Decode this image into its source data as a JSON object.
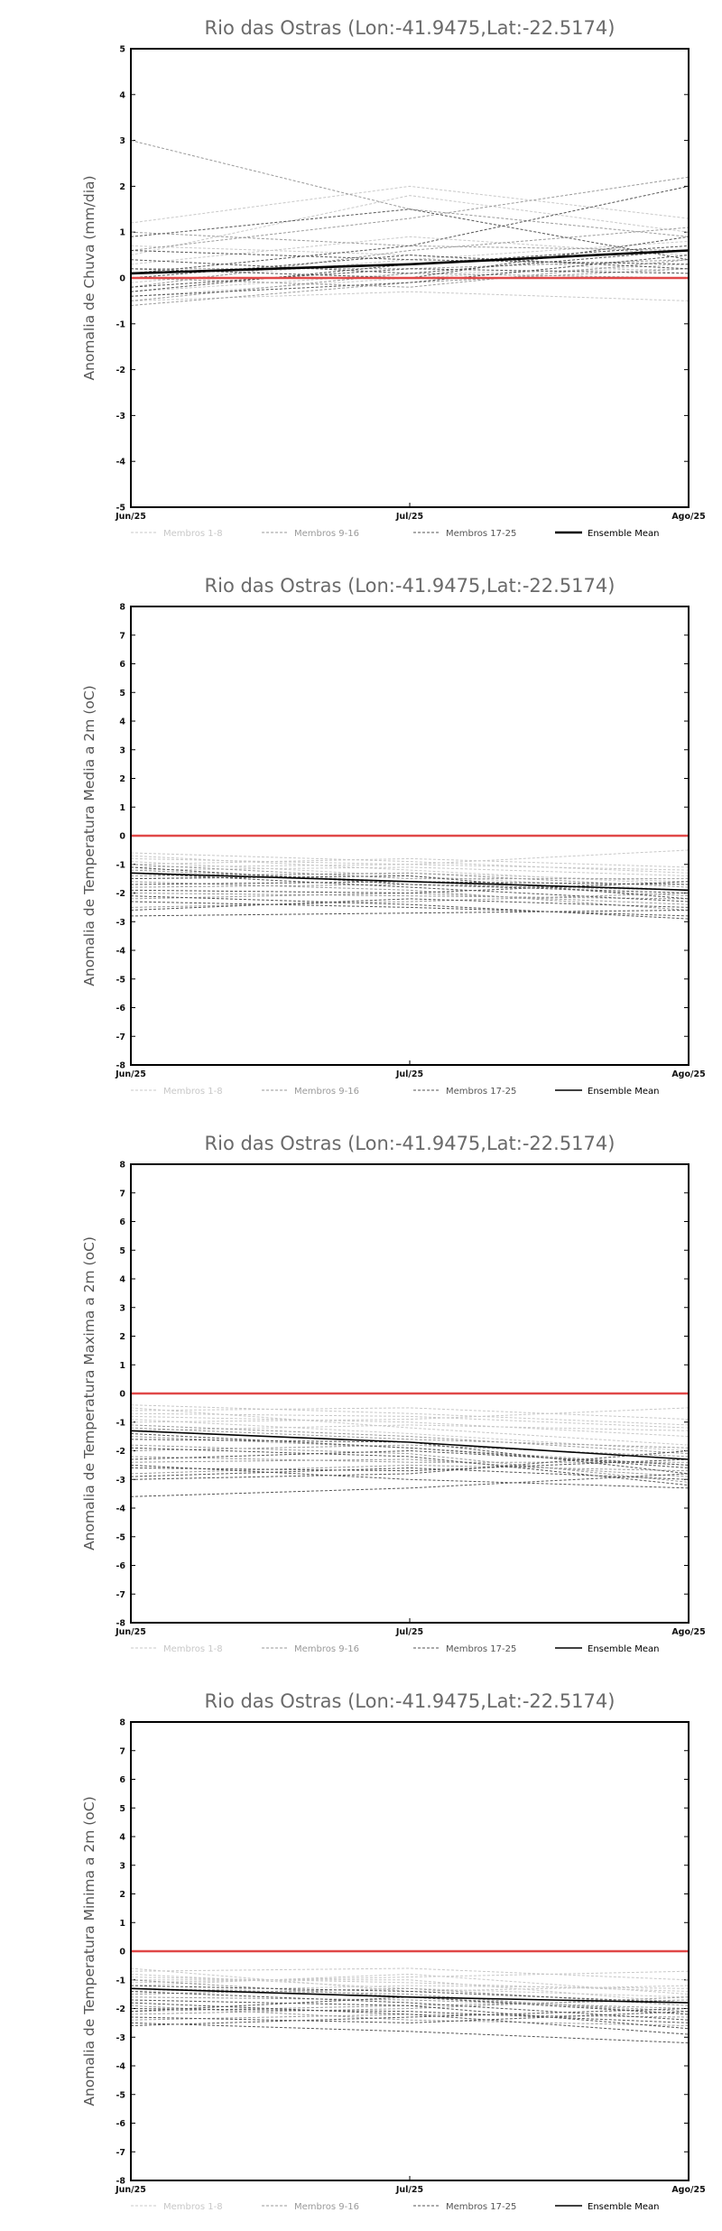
{
  "colors": {
    "members_1_8": "#c8c8c8",
    "members_9_16": "#9a9a9a",
    "members_17_25": "#555555",
    "ensemble_mean": "#000000",
    "zero_line": "#e04848",
    "axis_frame": "#000000",
    "title_text": "#6a6a6a"
  },
  "legend": {
    "members_1_8": "Membros 1-8",
    "members_9_16": "Membros 9-16",
    "members_17_25": "Membros 17-25",
    "ensemble_mean": "Ensemble Mean"
  },
  "chart_data": [
    {
      "type": "line",
      "title": "Rio das Ostras (Lon:-41.9475,Lat:-22.5174)",
      "ylabel": "Anomalia de Chuva (mm/dia)",
      "xlabel": "",
      "categories": [
        "Jun/25",
        "Jul/25",
        "Ago/25"
      ],
      "ylim": [
        -5,
        5
      ],
      "yticks": [
        "-5",
        "-4",
        "-3",
        "-2",
        "-1",
        "0",
        "1",
        "2",
        "3",
        "4",
        "5"
      ],
      "grid": false,
      "legend_position": "bottom",
      "reference_line": 0,
      "ensemble_mean": [
        0.1,
        0.3,
        0.6
      ],
      "series": [
        {
          "group": "members_1_8",
          "values": [
            1.2,
            2.0,
            1.3
          ]
        },
        {
          "group": "members_1_8",
          "values": [
            0.5,
            1.8,
            1.0
          ]
        },
        {
          "group": "members_1_8",
          "values": [
            -0.5,
            -0.3,
            -0.5
          ]
        },
        {
          "group": "members_1_8",
          "values": [
            -0.3,
            0.1,
            0.2
          ]
        },
        {
          "group": "members_1_8",
          "values": [
            0.3,
            0.9,
            0.5
          ]
        },
        {
          "group": "members_1_8",
          "values": [
            -0.1,
            0.4,
            0.8
          ]
        },
        {
          "group": "members_1_8",
          "values": [
            0.7,
            0.5,
            0.1
          ]
        },
        {
          "group": "members_1_8",
          "values": [
            -0.4,
            0.0,
            0.3
          ]
        },
        {
          "group": "members_9_16",
          "values": [
            3.0,
            1.5,
            0.9
          ]
        },
        {
          "group": "members_9_16",
          "values": [
            0.6,
            1.3,
            2.2
          ]
        },
        {
          "group": "members_9_16",
          "values": [
            -0.2,
            0.6,
            1.1
          ]
        },
        {
          "group": "members_9_16",
          "values": [
            0.2,
            0.2,
            0.4
          ]
        },
        {
          "group": "members_9_16",
          "values": [
            -0.6,
            -0.1,
            0.2
          ]
        },
        {
          "group": "members_9_16",
          "values": [
            1.0,
            0.7,
            0.6
          ]
        },
        {
          "group": "members_9_16",
          "values": [
            0.0,
            -0.2,
            0.4
          ]
        },
        {
          "group": "members_9_16",
          "values": [
            -0.5,
            0.1,
            0.0
          ]
        },
        {
          "group": "members_17_25",
          "values": [
            0.9,
            1.5,
            0.4
          ]
        },
        {
          "group": "members_17_25",
          "values": [
            0.1,
            0.7,
            2.0
          ]
        },
        {
          "group": "members_17_25",
          "values": [
            -0.3,
            0.3,
            0.7
          ]
        },
        {
          "group": "members_17_25",
          "values": [
            0.0,
            0.5,
            0.2
          ]
        },
        {
          "group": "members_17_25",
          "values": [
            -0.4,
            -0.1,
            0.5
          ]
        },
        {
          "group": "members_17_25",
          "values": [
            0.6,
            0.4,
            0.3
          ]
        },
        {
          "group": "members_17_25",
          "values": [
            0.2,
            0.0,
            0.9
          ]
        },
        {
          "group": "members_17_25",
          "values": [
            -0.2,
            0.2,
            0.1
          ]
        },
        {
          "group": "members_17_25",
          "values": [
            0.4,
            0.1,
            0.6
          ]
        }
      ]
    },
    {
      "type": "line",
      "title": "Rio das Ostras (Lon:-41.9475,Lat:-22.5174)",
      "ylabel": "Anomalia de Temperatura Media a 2m (oC)",
      "xlabel": "",
      "categories": [
        "Jun/25",
        "Jul/25",
        "Ago/25"
      ],
      "ylim": [
        -8,
        8
      ],
      "yticks": [
        "-8",
        "-7",
        "-6",
        "-5",
        "-4",
        "-3",
        "-2",
        "-1",
        "0",
        "1",
        "2",
        "3",
        "4",
        "5",
        "6",
        "7",
        "8"
      ],
      "grid": false,
      "legend_position": "bottom",
      "reference_line": 0,
      "ensemble_mean": [
        -1.3,
        -1.6,
        -1.9
      ],
      "series": [
        {
          "group": "members_1_8",
          "values": [
            -0.6,
            -0.9,
            -1.3
          ]
        },
        {
          "group": "members_1_8",
          "values": [
            -0.8,
            -1.0,
            -0.5
          ]
        },
        {
          "group": "members_1_8",
          "values": [
            -1.0,
            -0.8,
            -1.1
          ]
        },
        {
          "group": "members_1_8",
          "values": [
            -1.5,
            -1.3,
            -1.6
          ]
        },
        {
          "group": "members_1_8",
          "values": [
            -0.9,
            -1.4,
            -1.9
          ]
        },
        {
          "group": "members_1_8",
          "values": [
            -1.2,
            -1.1,
            -1.4
          ]
        },
        {
          "group": "members_1_8",
          "values": [
            -0.7,
            -1.2,
            -1.7
          ]
        },
        {
          "group": "members_1_8",
          "values": [
            -1.1,
            -1.0,
            -1.2
          ]
        },
        {
          "group": "members_9_16",
          "values": [
            -1.2,
            -1.6,
            -2.1
          ]
        },
        {
          "group": "members_9_16",
          "values": [
            -1.8,
            -1.7,
            -1.9
          ]
        },
        {
          "group": "members_9_16",
          "values": [
            -2.2,
            -2.0,
            -2.4
          ]
        },
        {
          "group": "members_9_16",
          "values": [
            -1.0,
            -1.5,
            -1.5
          ]
        },
        {
          "group": "members_9_16",
          "values": [
            -2.5,
            -2.3,
            -2.0
          ]
        },
        {
          "group": "members_9_16",
          "values": [
            -1.6,
            -1.9,
            -2.6
          ]
        },
        {
          "group": "members_9_16",
          "values": [
            -1.4,
            -1.3,
            -1.8
          ]
        },
        {
          "group": "members_9_16",
          "values": [
            -2.0,
            -2.1,
            -2.2
          ]
        },
        {
          "group": "members_17_25",
          "values": [
            -2.8,
            -2.7,
            -2.6
          ]
        },
        {
          "group": "members_17_25",
          "values": [
            -1.3,
            -1.8,
            -2.3
          ]
        },
        {
          "group": "members_17_25",
          "values": [
            -2.1,
            -2.4,
            -2.9
          ]
        },
        {
          "group": "members_17_25",
          "values": [
            -1.7,
            -1.6,
            -1.7
          ]
        },
        {
          "group": "members_17_25",
          "values": [
            -2.6,
            -2.2,
            -2.5
          ]
        },
        {
          "group": "members_17_25",
          "values": [
            -1.1,
            -1.7,
            -2.0
          ]
        },
        {
          "group": "members_17_25",
          "values": [
            -1.9,
            -2.0,
            -1.6
          ]
        },
        {
          "group": "members_17_25",
          "values": [
            -2.3,
            -2.5,
            -2.8
          ]
        },
        {
          "group": "members_17_25",
          "values": [
            -1.5,
            -1.4,
            -2.2
          ]
        }
      ]
    },
    {
      "type": "line",
      "title": "Rio das Ostras (Lon:-41.9475,Lat:-22.5174)",
      "ylabel": "Anomalia de Temperatura Maxima a 2m (oC)",
      "xlabel": "",
      "categories": [
        "Jun/25",
        "Jul/25",
        "Ago/25"
      ],
      "ylim": [
        -8,
        8
      ],
      "yticks": [
        "-8",
        "-7",
        "-6",
        "-5",
        "-4",
        "-3",
        "-2",
        "-1",
        "0",
        "1",
        "2",
        "3",
        "4",
        "5",
        "6",
        "7",
        "8"
      ],
      "grid": false,
      "legend_position": "bottom",
      "reference_line": 0,
      "ensemble_mean": [
        -1.3,
        -1.7,
        -2.3
      ],
      "series": [
        {
          "group": "members_1_8",
          "values": [
            -0.4,
            -0.7,
            -1.1
          ]
        },
        {
          "group": "members_1_8",
          "values": [
            -0.6,
            -0.5,
            -0.9
          ]
        },
        {
          "group": "members_1_8",
          "values": [
            -0.8,
            -1.0,
            -1.5
          ]
        },
        {
          "group": "members_1_8",
          "values": [
            -1.0,
            -0.9,
            -0.5
          ]
        },
        {
          "group": "members_1_8",
          "values": [
            -0.5,
            -1.2,
            -1.8
          ]
        },
        {
          "group": "members_1_8",
          "values": [
            -1.3,
            -1.1,
            -1.3
          ]
        },
        {
          "group": "members_1_8",
          "values": [
            -0.9,
            -1.4,
            -2.0
          ]
        },
        {
          "group": "members_1_8",
          "values": [
            -0.7,
            -0.8,
            -1.2
          ]
        },
        {
          "group": "members_9_16",
          "values": [
            -1.5,
            -1.9,
            -2.5
          ]
        },
        {
          "group": "members_9_16",
          "values": [
            -2.0,
            -1.8,
            -2.2
          ]
        },
        {
          "group": "members_9_16",
          "values": [
            -2.4,
            -2.3,
            -2.9
          ]
        },
        {
          "group": "members_9_16",
          "values": [
            -1.2,
            -1.6,
            -1.9
          ]
        },
        {
          "group": "members_9_16",
          "values": [
            -2.8,
            -2.5,
            -2.7
          ]
        },
        {
          "group": "members_9_16",
          "values": [
            -1.8,
            -2.1,
            -3.1
          ]
        },
        {
          "group": "members_9_16",
          "values": [
            -1.1,
            -1.5,
            -2.1
          ]
        },
        {
          "group": "members_9_16",
          "values": [
            -2.2,
            -2.4,
            -2.4
          ]
        },
        {
          "group": "members_17_25",
          "values": [
            -3.6,
            -3.3,
            -2.8
          ]
        },
        {
          "group": "members_17_25",
          "values": [
            -2.9,
            -2.6,
            -3.0
          ]
        },
        {
          "group": "members_17_25",
          "values": [
            -1.4,
            -1.9,
            -2.6
          ]
        },
        {
          "group": "members_17_25",
          "values": [
            -2.6,
            -2.7,
            -2.3
          ]
        },
        {
          "group": "members_17_25",
          "values": [
            -1.9,
            -2.2,
            -3.2
          ]
        },
        {
          "group": "members_17_25",
          "values": [
            -2.3,
            -2.0,
            -2.5
          ]
        },
        {
          "group": "members_17_25",
          "values": [
            -3.0,
            -2.8,
            -2.0
          ]
        },
        {
          "group": "members_17_25",
          "values": [
            -1.6,
            -1.7,
            -2.8
          ]
        },
        {
          "group": "members_17_25",
          "values": [
            -2.5,
            -3.0,
            -3.3
          ]
        }
      ]
    },
    {
      "type": "line",
      "title": "Rio das Ostras (Lon:-41.9475,Lat:-22.5174)",
      "ylabel": "Anomalia de Temperatura Minima a 2m (oC)",
      "xlabel": "",
      "categories": [
        "Jun/25",
        "Jul/25",
        "Ago/25"
      ],
      "ylim": [
        -8,
        8
      ],
      "yticks": [
        "-8",
        "-7",
        "-6",
        "-5",
        "-4",
        "-3",
        "-2",
        "-1",
        "0",
        "1",
        "2",
        "3",
        "4",
        "5",
        "6",
        "7",
        "8"
      ],
      "grid": false,
      "legend_position": "bottom",
      "reference_line": 0,
      "ensemble_mean": [
        -1.3,
        -1.6,
        -1.8
      ],
      "series": [
        {
          "group": "members_1_8",
          "values": [
            -0.7,
            -0.6,
            -1.0
          ]
        },
        {
          "group": "members_1_8",
          "values": [
            -0.9,
            -1.1,
            -1.4
          ]
        },
        {
          "group": "members_1_8",
          "values": [
            -1.1,
            -0.9,
            -0.7
          ]
        },
        {
          "group": "members_1_8",
          "values": [
            -0.8,
            -1.3,
            -1.6
          ]
        },
        {
          "group": "members_1_8",
          "values": [
            -1.4,
            -1.2,
            -1.3
          ]
        },
        {
          "group": "members_1_8",
          "values": [
            -1.0,
            -1.0,
            -1.8
          ]
        },
        {
          "group": "members_1_8",
          "values": [
            -0.6,
            -1.4,
            -1.2
          ]
        },
        {
          "group": "members_1_8",
          "values": [
            -1.2,
            -0.8,
            -1.5
          ]
        },
        {
          "group": "members_9_16",
          "values": [
            -1.6,
            -1.7,
            -2.0
          ]
        },
        {
          "group": "members_9_16",
          "values": [
            -2.1,
            -1.9,
            -1.7
          ]
        },
        {
          "group": "members_9_16",
          "values": [
            -2.4,
            -2.2,
            -2.3
          ]
        },
        {
          "group": "members_9_16",
          "values": [
            -1.3,
            -1.5,
            -2.2
          ]
        },
        {
          "group": "members_9_16",
          "values": [
            -1.9,
            -2.4,
            -2.6
          ]
        },
        {
          "group": "members_9_16",
          "values": [
            -1.5,
            -1.3,
            -1.9
          ]
        },
        {
          "group": "members_9_16",
          "values": [
            -1.0,
            -1.6,
            -2.1
          ]
        },
        {
          "group": "members_9_16",
          "values": [
            -2.2,
            -2.0,
            -1.6
          ]
        },
        {
          "group": "members_17_25",
          "values": [
            -2.5,
            -2.8,
            -3.2
          ]
        },
        {
          "group": "members_17_25",
          "values": [
            -2.0,
            -2.1,
            -2.5
          ]
        },
        {
          "group": "members_17_25",
          "values": [
            -1.4,
            -1.8,
            -2.4
          ]
        },
        {
          "group": "members_17_25",
          "values": [
            -2.3,
            -2.5,
            -2.1
          ]
        },
        {
          "group": "members_17_25",
          "values": [
            -1.7,
            -1.9,
            -2.7
          ]
        },
        {
          "group": "members_17_25",
          "values": [
            -2.6,
            -2.3,
            -2.0
          ]
        },
        {
          "group": "members_17_25",
          "values": [
            -1.2,
            -1.4,
            -1.8
          ]
        },
        {
          "group": "members_17_25",
          "values": [
            -1.8,
            -2.2,
            -2.9
          ]
        },
        {
          "group": "members_17_25",
          "values": [
            -2.1,
            -1.6,
            -2.2
          ]
        }
      ]
    }
  ]
}
